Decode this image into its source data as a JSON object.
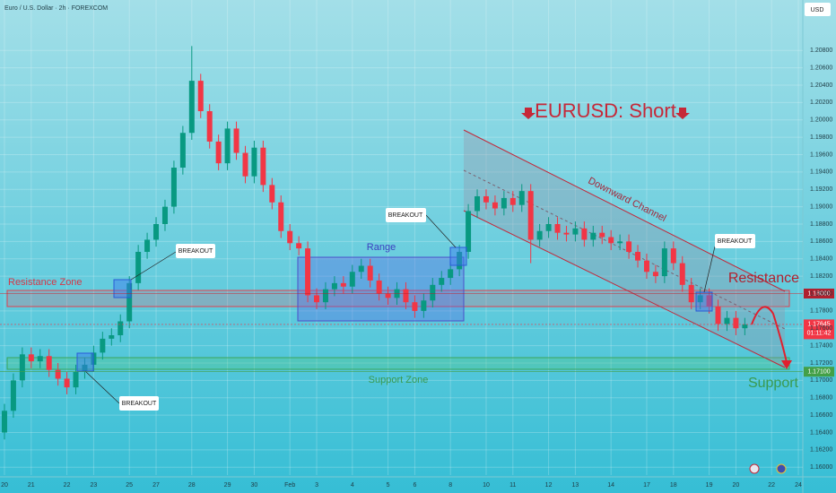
{
  "header": {
    "symbol": "Euro / U.S. Dollar · 2h · FOREXCOM",
    "currency": "USD"
  },
  "chart_data": {
    "type": "candlestick",
    "title": "EURUSD: Short",
    "xlim": [
      -0.5,
      89.5
    ],
    "ylim": [
      1.1591,
      1.2138
    ],
    "xticks": [
      {
        "value": 0,
        "label": "20"
      },
      {
        "value": 3,
        "label": "21"
      },
      {
        "value": 7,
        "label": "22"
      },
      {
        "value": 10,
        "label": "23"
      },
      {
        "value": 14,
        "label": "25"
      },
      {
        "value": 17,
        "label": "27"
      },
      {
        "value": 21,
        "label": "28"
      },
      {
        "value": 25,
        "label": "29"
      },
      {
        "value": 28,
        "label": "30"
      },
      {
        "value": 32,
        "label": "Feb"
      },
      {
        "value": 35,
        "label": "3"
      },
      {
        "value": 39,
        "label": "4"
      },
      {
        "value": 43,
        "label": "5"
      },
      {
        "value": 46,
        "label": "6"
      },
      {
        "value": 50,
        "label": "8"
      },
      {
        "value": 54,
        "label": "10"
      },
      {
        "value": 57,
        "label": "11"
      },
      {
        "value": 61,
        "label": "12"
      },
      {
        "value": 64,
        "label": "13"
      },
      {
        "value": 68,
        "label": "14"
      },
      {
        "value": 72,
        "label": "17"
      },
      {
        "value": 75,
        "label": "18"
      },
      {
        "value": 79,
        "label": "19"
      },
      {
        "value": 82,
        "label": "20"
      },
      {
        "value": 86,
        "label": "22"
      },
      {
        "value": 89,
        "label": "24"
      }
    ],
    "yticks": [
      {
        "value": 1.16,
        "label": "1.16000"
      },
      {
        "value": 1.162,
        "label": "1.16200"
      },
      {
        "value": 1.164,
        "label": "1.16400"
      },
      {
        "value": 1.166,
        "label": "1.16600"
      },
      {
        "value": 1.168,
        "label": "1.16800"
      },
      {
        "value": 1.17,
        "label": "1.17000"
      },
      {
        "value": 1.172,
        "label": "1.17200"
      },
      {
        "value": 1.174,
        "label": "1.17400"
      },
      {
        "value": 1.176,
        "label": "1.17600"
      },
      {
        "value": 1.178,
        "label": "1.17800"
      },
      {
        "value": 1.18,
        "label": "1.18000"
      },
      {
        "value": 1.182,
        "label": "1.18200"
      },
      {
        "value": 1.184,
        "label": "1.18400"
      },
      {
        "value": 1.186,
        "label": "1.18600"
      },
      {
        "value": 1.188,
        "label": "1.18800"
      },
      {
        "value": 1.19,
        "label": "1.19000"
      },
      {
        "value": 1.192,
        "label": "1.19200"
      },
      {
        "value": 1.194,
        "label": "1.19400"
      },
      {
        "value": 1.196,
        "label": "1.19600"
      },
      {
        "value": 1.198,
        "label": "1.19800"
      },
      {
        "value": 1.2,
        "label": "1.20000"
      },
      {
        "value": 1.202,
        "label": "1.20200"
      },
      {
        "value": 1.204,
        "label": "1.20400"
      },
      {
        "value": 1.206,
        "label": "1.20600"
      },
      {
        "value": 1.208,
        "label": "1.20800"
      }
    ],
    "grid": true,
    "up_color": "#089981",
    "down_color": "#f23645",
    "open": [
      1.164,
      1.1665,
      1.17,
      1.173,
      1.1722,
      1.1728,
      1.1712,
      1.1702,
      1.1692,
      1.171,
      1.1718,
      1.1732,
      1.1748,
      1.1752,
      1.1768,
      1.1812,
      1.1848,
      1.1862,
      1.188,
      1.19,
      1.1945,
      1.1985,
      1.2045,
      1.201,
      1.1975,
      1.195,
      1.199,
      1.1962,
      1.1935,
      1.1968,
      1.1925,
      1.1905,
      1.1872,
      1.1858,
      1.1852,
      1.1798,
      1.179,
      1.1805,
      1.1812,
      1.1808,
      1.1825,
      1.1832,
      1.1815,
      1.18,
      1.1795,
      1.1805,
      1.179,
      1.178,
      1.1792,
      1.181,
      1.1818,
      1.1828,
      1.1848,
      1.1895,
      1.1912,
      1.1905,
      1.1898,
      1.191,
      1.1902,
      1.1918,
      1.1862,
      1.1872,
      1.188,
      1.187,
      1.1868,
      1.1875,
      1.1862,
      1.187,
      1.1865,
      1.1858,
      1.186,
      1.1848,
      1.1838,
      1.1825,
      1.182,
      1.1852,
      1.1835,
      1.181,
      1.179,
      1.1798,
      1.1785,
      1.1765,
      1.1772,
      1.176
    ],
    "high": [
      1.1673,
      1.1708,
      1.1738,
      1.1738,
      1.1736,
      1.1736,
      1.172,
      1.171,
      1.1718,
      1.1726,
      1.174,
      1.1756,
      1.176,
      1.1776,
      1.182,
      1.1856,
      1.187,
      1.1888,
      1.1908,
      1.1953,
      1.1993,
      1.2085,
      1.2053,
      1.2018,
      1.1983,
      1.1998,
      1.1998,
      1.197,
      1.1976,
      1.1976,
      1.1933,
      1.1913,
      1.188,
      1.1866,
      1.186,
      1.1806,
      1.1813,
      1.182,
      1.182,
      1.1833,
      1.184,
      1.184,
      1.1823,
      1.1808,
      1.1813,
      1.1813,
      1.1798,
      1.18,
      1.1818,
      1.1826,
      1.1836,
      1.1856,
      1.1903,
      1.192,
      1.192,
      1.1913,
      1.1918,
      1.1918,
      1.1926,
      1.1926,
      1.188,
      1.1888,
      1.1888,
      1.1878,
      1.1883,
      1.1883,
      1.1878,
      1.1878,
      1.1873,
      1.1868,
      1.1868,
      1.1856,
      1.1846,
      1.1833,
      1.186,
      1.186,
      1.1843,
      1.1818,
      1.1806,
      1.1806,
      1.1793,
      1.178,
      1.178,
      1.1772
    ],
    "low": [
      1.1632,
      1.1657,
      1.1692,
      1.1714,
      1.1714,
      1.1704,
      1.1694,
      1.1684,
      1.1684,
      1.1702,
      1.171,
      1.1724,
      1.174,
      1.1744,
      1.176,
      1.1804,
      1.184,
      1.1854,
      1.1872,
      1.1892,
      1.1937,
      1.1977,
      1.2002,
      1.1967,
      1.1942,
      1.1942,
      1.1954,
      1.1927,
      1.1927,
      1.1917,
      1.1897,
      1.1864,
      1.185,
      1.1844,
      1.179,
      1.1782,
      1.1782,
      1.1797,
      1.18,
      1.18,
      1.1817,
      1.1807,
      1.1792,
      1.1787,
      1.1787,
      1.1782,
      1.1772,
      1.1772,
      1.1784,
      1.1802,
      1.181,
      1.182,
      1.184,
      1.1887,
      1.1897,
      1.189,
      1.189,
      1.1894,
      1.1894,
      1.1835,
      1.1854,
      1.1864,
      1.1862,
      1.186,
      1.186,
      1.1854,
      1.1854,
      1.1857,
      1.185,
      1.185,
      1.184,
      1.183,
      1.1817,
      1.1812,
      1.1812,
      1.1827,
      1.1802,
      1.1782,
      1.1782,
      1.1777,
      1.1757,
      1.1757,
      1.1752,
      1.1752
    ],
    "close": [
      1.1665,
      1.17,
      1.173,
      1.1722,
      1.1728,
      1.1712,
      1.1702,
      1.1692,
      1.171,
      1.1718,
      1.1732,
      1.1748,
      1.1752,
      1.1768,
      1.1812,
      1.1848,
      1.1862,
      1.188,
      1.19,
      1.1945,
      1.1985,
      1.2045,
      1.201,
      1.1975,
      1.195,
      1.199,
      1.1962,
      1.1935,
      1.1968,
      1.1925,
      1.1905,
      1.1872,
      1.1858,
      1.1852,
      1.1798,
      1.179,
      1.1805,
      1.1812,
      1.1808,
      1.1825,
      1.1832,
      1.1815,
      1.18,
      1.1795,
      1.1805,
      1.179,
      1.178,
      1.1792,
      1.181,
      1.1818,
      1.1828,
      1.1848,
      1.1895,
      1.1912,
      1.1905,
      1.1898,
      1.191,
      1.1902,
      1.1918,
      1.1862,
      1.1872,
      1.188,
      1.187,
      1.1868,
      1.1875,
      1.1862,
      1.187,
      1.1865,
      1.1858,
      1.186,
      1.1848,
      1.1838,
      1.1825,
      1.182,
      1.1852,
      1.1835,
      1.181,
      1.179,
      1.1798,
      1.1785,
      1.1765,
      1.1772,
      1.176,
      1.17645
    ],
    "annotations": {
      "channel": "Downward Channel",
      "range": "Range",
      "resistance_zone": "Resistance Zone",
      "support_zone": "Support Zone",
      "resistance": "Resistance",
      "support": "Support",
      "breakouts": [
        "BREAKOUT",
        "BREAKOUT",
        "BREAKOUT",
        "BREAKOUT"
      ]
    },
    "price_tags": [
      {
        "value": 1.18,
        "label": "1.18000",
        "color": "#b0202e"
      },
      {
        "value": 1.17645,
        "label": "1.17645",
        "timer": "01:11:42",
        "color": "#f23645"
      },
      {
        "value": 1.171,
        "label": "1.17100",
        "color": "#43a047"
      }
    ]
  }
}
